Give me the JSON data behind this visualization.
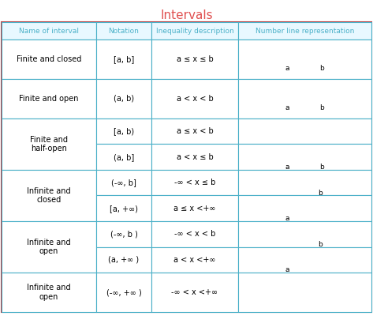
{
  "title": "Intervals",
  "title_color": "#e05050",
  "header_color": "#4ab0c8",
  "header_text_color": "#4ab0c8",
  "cell_bg": "#ffffff",
  "border_color": "#4ab0c8",
  "text_color": "#000000",
  "outer_border_color": "#c04040",
  "figsize": [
    4.73,
    4.0
  ],
  "dpi": 100,
  "col_labels": [
    "Name of interval",
    "Notation",
    "Inequality description",
    "Number line representation"
  ],
  "rows": [
    {
      "name": "Finite and closed",
      "sub_rows": [
        {
          "notation": "[a, b]",
          "inequality": "a ≤ x ≤ b",
          "nl_type": "closed_closed",
          "show_ab": [
            true,
            true
          ],
          "show_a_label": true,
          "show_b_label": true
        }
      ]
    },
    {
      "name": "Finite and open",
      "sub_rows": [
        {
          "notation": "(a, b)",
          "inequality": "a < x < b",
          "nl_type": "open_open",
          "show_ab": [
            true,
            true
          ],
          "show_a_label": true,
          "show_b_label": true
        }
      ]
    },
    {
      "name": "Finite and\nhalf-open",
      "sub_rows": [
        {
          "notation": "[a, b)",
          "inequality": "a ≤ x < b",
          "nl_type": "closed_open",
          "show_ab": [
            true,
            true
          ],
          "show_a_label": false,
          "show_b_label": false
        },
        {
          "notation": "(a, b]",
          "inequality": "a < x ≤ b",
          "nl_type": "open_closed",
          "show_ab": [
            true,
            true
          ],
          "show_a_label": true,
          "show_b_label": true
        }
      ]
    },
    {
      "name": "Infinite and\nclosed",
      "sub_rows": [
        {
          "notation": "(-∞, b]",
          "inequality": "-∞ < x ≤ b",
          "nl_type": "inf_closed_b",
          "show_a_label": false,
          "show_b_label": true
        },
        {
          "notation": "[a, +∞)",
          "inequality": "a ≤ x <+∞",
          "nl_type": "closed_a_inf",
          "show_a_label": true,
          "show_b_label": false
        }
      ]
    },
    {
      "name": "Infinite and\nopen",
      "sub_rows": [
        {
          "notation": "(-∞, b )",
          "inequality": "-∞ < x < b",
          "nl_type": "inf_open_b",
          "show_a_label": false,
          "show_b_label": true
        },
        {
          "notation": "(a, +∞ )",
          "inequality": "a < x <+∞",
          "nl_type": "open_a_inf",
          "show_a_label": true,
          "show_b_label": false
        }
      ]
    },
    {
      "name": "Infinite and\nopen",
      "sub_rows": [
        {
          "notation": "(-∞, +∞ )",
          "inequality": "-∞ < x <+∞",
          "nl_type": "inf_inf",
          "show_a_label": false,
          "show_b_label": false
        }
      ]
    }
  ]
}
